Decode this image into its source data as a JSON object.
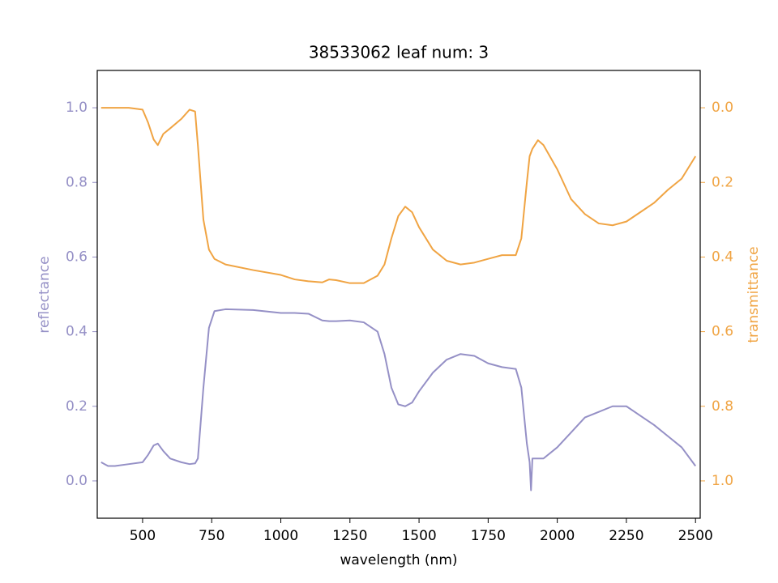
{
  "chart_data": {
    "type": "line",
    "title": "38533062 leaf num: 3",
    "x_label": "wavelength (nm)",
    "y_label": "reflectance",
    "y2_label": "transmittance",
    "x": [
      350,
      375,
      400,
      450,
      500,
      520,
      540,
      555,
      575,
      600,
      640,
      670,
      690,
      700,
      720,
      740,
      760,
      800,
      900,
      1000,
      1050,
      1100,
      1150,
      1175,
      1200,
      1250,
      1300,
      1350,
      1375,
      1400,
      1425,
      1450,
      1475,
      1500,
      1550,
      1600,
      1650,
      1700,
      1750,
      1800,
      1850,
      1870,
      1890,
      1900,
      1905,
      1910,
      1930,
      1950,
      2000,
      2050,
      2100,
      2150,
      2200,
      2250,
      2300,
      2350,
      2400,
      2450,
      2500
    ],
    "series": [
      {
        "name": "reflectance",
        "color": "#9590c6",
        "values": [
          0.05,
          0.04,
          0.04,
          0.045,
          0.05,
          0.07,
          0.095,
          0.1,
          0.08,
          0.06,
          0.05,
          0.045,
          0.047,
          0.06,
          0.25,
          0.41,
          0.455,
          0.46,
          0.458,
          0.45,
          0.45,
          0.448,
          0.43,
          0.428,
          0.428,
          0.43,
          0.425,
          0.4,
          0.34,
          0.25,
          0.205,
          0.2,
          0.21,
          0.24,
          0.29,
          0.325,
          0.34,
          0.335,
          0.315,
          0.305,
          0.3,
          0.25,
          0.1,
          0.05,
          -0.025,
          0.06,
          0.06,
          0.06,
          0.09,
          0.13,
          0.17,
          0.185,
          0.2,
          0.2,
          0.175,
          0.15,
          0.12,
          0.09,
          0.04
        ]
      },
      {
        "name": "transmittance",
        "color": "#f0a443",
        "axis": "y2",
        "values": [
          0,
          0,
          0,
          0,
          0.005,
          0.04,
          0.085,
          0.1,
          0.07,
          0.055,
          0.03,
          0.005,
          0.01,
          0.1,
          0.3,
          0.38,
          0.405,
          0.42,
          0.435,
          0.448,
          0.46,
          0.465,
          0.468,
          0.46,
          0.462,
          0.47,
          0.47,
          0.45,
          0.42,
          0.35,
          0.29,
          0.265,
          0.28,
          0.32,
          0.38,
          0.41,
          0.42,
          0.415,
          0.405,
          0.395,
          0.395,
          0.35,
          0.2,
          0.13,
          0.12,
          0.11,
          0.087,
          0.1,
          0.165,
          0.245,
          0.285,
          0.31,
          0.315,
          0.305,
          0.28,
          0.255,
          0.22,
          0.19,
          0.13
        ]
      }
    ],
    "xlim": [
      336,
      2517
    ],
    "xticks": [
      500,
      750,
      1000,
      1250,
      1500,
      1750,
      2000,
      2250,
      2500
    ],
    "ylim": [
      -0.1,
      1.1
    ],
    "yticks": [
      {
        "value": 0,
        "label": "0.0"
      },
      0.2,
      0.4,
      0.6,
      0.8,
      {
        "value": 1,
        "label": "1.0"
      }
    ],
    "y2lim": [
      1.1,
      -0.1
    ],
    "y2ticks": [
      {
        "value": 0,
        "label": "0.0"
      },
      0.2,
      0.4,
      0.6,
      0.8,
      {
        "value": 1,
        "label": "1.0"
      }
    ],
    "grid": false
  }
}
